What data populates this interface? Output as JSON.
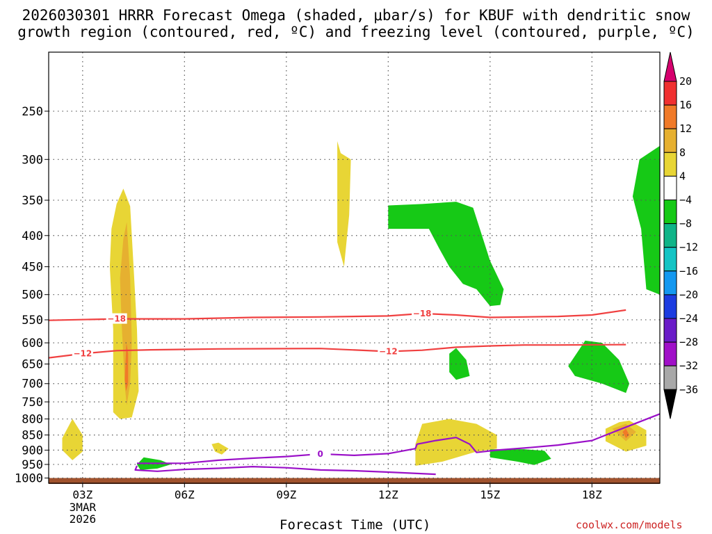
{
  "title": {
    "line1": "2026030301 HRRR Forecast Omega (shaded, μbar/s) for KBUF with dendritic snow",
    "line2": "growth region (contoured, red, ºC) and freezing level (contoured, purple, ºC)"
  },
  "credit": "coolwx.com/models",
  "chart_data": {
    "type": "heatmap",
    "title": "2026030301 HRRR Forecast Omega (shaded, μbar/s) for KBUF with dendritic snow growth region (contoured, red, ºC) and freezing level (contoured, purple, ºC)",
    "xlabel": "Forecast Time (UTC)",
    "ylabel": "",
    "x_unit": "forecast hour",
    "y_unit": "hPa",
    "xlim": [
      1,
      19
    ],
    "ylim": [
      1020,
      200
    ],
    "y_scale": "log",
    "x_ticks": [
      {
        "x": 2,
        "label": "03Z",
        "sub": [
          "3MAR",
          "2026"
        ]
      },
      {
        "x": 5,
        "label": "06Z"
      },
      {
        "x": 8,
        "label": "09Z"
      },
      {
        "x": 11,
        "label": "12Z"
      },
      {
        "x": 14,
        "label": "15Z"
      },
      {
        "x": 17,
        "label": "18Z"
      }
    ],
    "y_ticks": [
      250,
      300,
      350,
      400,
      450,
      500,
      550,
      600,
      650,
      700,
      750,
      800,
      850,
      900,
      950,
      1000
    ],
    "grid": true,
    "colorbar": {
      "placement": "right",
      "labels": [
        "20",
        "16",
        "12",
        "8",
        "4",
        "−4",
        "−8",
        "−12",
        "−16",
        "−20",
        "−24",
        "−28",
        "−32",
        "−36"
      ],
      "colors": [
        "#d6006e",
        "#f03030",
        "#f07a28",
        "#e6b030",
        "#e8d535",
        "#ffffff",
        "#16c916",
        "#10b488",
        "#14c4c4",
        "#1498f0",
        "#1c3ce0",
        "#6a1cc8",
        "#a010c8",
        "#a8a8a8",
        "#000000"
      ]
    },
    "contours": {
      "dendritic": {
        "color": "#f04040",
        "levels": [
          {
            "value": -18,
            "label": "−18",
            "points": [
              [
                1,
                551
              ],
              [
                3,
                548
              ],
              [
                5,
                548
              ],
              [
                7,
                545
              ],
              [
                9,
                544
              ],
              [
                11,
                542
              ],
              [
                12,
                537
              ],
              [
                13,
                540
              ],
              [
                14,
                545
              ],
              [
                16,
                543
              ],
              [
                17,
                540
              ],
              [
                18,
                530
              ]
            ]
          },
          {
            "value": -12,
            "label": "−12",
            "points": [
              [
                1,
                635
              ],
              [
                2,
                625
              ],
              [
                3,
                618
              ],
              [
                4,
                616
              ],
              [
                6,
                614
              ],
              [
                9,
                613
              ],
              [
                11,
                620
              ],
              [
                12,
                617
              ],
              [
                13,
                610
              ],
              [
                14,
                607
              ],
              [
                15,
                605
              ],
              [
                16,
                605
              ],
              [
                18,
                604
              ]
            ]
          }
        ]
      },
      "freezing": {
        "color": "#9a10c8",
        "levels": [
          {
            "value": 0,
            "label": "0",
            "points": [
              [
                3.6,
                946
              ],
              [
                5,
                946
              ],
              [
                6,
                935
              ],
              [
                7,
                928
              ],
              [
                8,
                922
              ],
              [
                9,
                913
              ],
              [
                10,
                918
              ],
              [
                11,
                912
              ],
              [
                11.8,
                895
              ],
              [
                11.85,
                880
              ],
              [
                12.4,
                868
              ],
              [
                13.0,
                858
              ],
              [
                13.4,
                880
              ],
              [
                13.6,
                908
              ],
              [
                14.2,
                900
              ],
              [
                15,
                893
              ],
              [
                16,
                883
              ],
              [
                17,
                868
              ],
              [
                18,
                825
              ],
              [
                19,
                785
              ]
            ]
          },
          {
            "value": 0,
            "label": "",
            "points": [
              [
                3.6,
                955
              ],
              [
                3.55,
                970
              ],
              [
                4.2,
                975
              ],
              [
                5,
                968
              ],
              [
                6,
                964
              ],
              [
                7,
                958
              ],
              [
                8,
                962
              ],
              [
                9,
                970
              ],
              [
                10,
                973
              ],
              [
                11,
                978
              ],
              [
                12.4,
                986
              ]
            ]
          }
        ]
      }
    },
    "shaded_regions": [
      {
        "level": "4 to 8",
        "color": "#e8d535",
        "points": [
          [
            2.9,
            780
          ],
          [
            2.9,
            570
          ],
          [
            2.8,
            450
          ],
          [
            2.85,
            390
          ],
          [
            3.0,
            355
          ],
          [
            3.2,
            335
          ],
          [
            3.4,
            358
          ],
          [
            3.5,
            450
          ],
          [
            3.6,
            570
          ],
          [
            3.65,
            720
          ],
          [
            3.45,
            795
          ],
          [
            3.1,
            800
          ]
        ]
      },
      {
        "level": "8 to 12",
        "color": "#e6b030",
        "points": [
          [
            3.25,
            715
          ],
          [
            3.15,
            560
          ],
          [
            3.1,
            470
          ],
          [
            3.2,
            405
          ],
          [
            3.3,
            380
          ],
          [
            3.4,
            470
          ],
          [
            3.45,
            600
          ],
          [
            3.4,
            700
          ],
          [
            3.3,
            760
          ]
        ]
      },
      {
        "level": "12 to 16",
        "color": "#f07a28",
        "points": [
          [
            3.26,
            650
          ],
          [
            3.29,
            600
          ],
          [
            3.34,
            625
          ],
          [
            3.34,
            700
          ],
          [
            3.28,
            720
          ],
          [
            3.24,
            690
          ]
        ]
      },
      {
        "level": "4 to 8",
        "color": "#e8d535",
        "points": [
          [
            9.5,
            280
          ],
          [
            9.6,
            293
          ],
          [
            9.9,
            300
          ],
          [
            9.85,
            370
          ],
          [
            9.7,
            450
          ],
          [
            9.5,
            410
          ],
          [
            9.5,
            340
          ]
        ]
      },
      {
        "level": "4 to 8",
        "color": "#e8d535",
        "points": [
          [
            1.4,
            860
          ],
          [
            1.7,
            800
          ],
          [
            2.0,
            850
          ],
          [
            2.0,
            905
          ],
          [
            1.7,
            935
          ],
          [
            1.4,
            900
          ]
        ]
      },
      {
        "level": "4 to 8",
        "color": "#e8d535",
        "points": [
          [
            5.8,
            880
          ],
          [
            6.0,
            875
          ],
          [
            6.3,
            895
          ],
          [
            6.1,
            915
          ],
          [
            5.9,
            905
          ]
        ]
      },
      {
        "level": "4 to 8",
        "color": "#e8d535",
        "points": [
          [
            11.8,
            880
          ],
          [
            12.0,
            815
          ],
          [
            12.8,
            800
          ],
          [
            13.6,
            815
          ],
          [
            14.2,
            850
          ],
          [
            14.2,
            895
          ],
          [
            13.6,
            905
          ],
          [
            12.6,
            940
          ],
          [
            11.8,
            955
          ]
        ]
      },
      {
        "level": "4 to 8",
        "color": "#e8d535",
        "points": [
          [
            17.4,
            830
          ],
          [
            17.8,
            810
          ],
          [
            18.1,
            805
          ],
          [
            18.6,
            835
          ],
          [
            18.6,
            885
          ],
          [
            18.0,
            905
          ],
          [
            17.4,
            870
          ]
        ]
      },
      {
        "level": "8 to 12",
        "color": "#e6b030",
        "points": [
          [
            17.6,
            830
          ],
          [
            18.0,
            815
          ],
          [
            18.3,
            840
          ],
          [
            18.0,
            870
          ]
        ]
      },
      {
        "level": "12 to 16",
        "color": "#f07a28",
        "points": [
          [
            17.9,
            840
          ],
          [
            18.0,
            830
          ],
          [
            18.1,
            850
          ],
          [
            18.0,
            860
          ]
        ]
      },
      {
        "level": "-8 to -4",
        "color": "#16c916",
        "points": [
          [
            11,
            357
          ],
          [
            12,
            355
          ],
          [
            13,
            352
          ],
          [
            13.5,
            360
          ],
          [
            14.0,
            440
          ],
          [
            14.4,
            490
          ],
          [
            14.3,
            520
          ],
          [
            14.0,
            522
          ],
          [
            13.6,
            490
          ],
          [
            13.2,
            480
          ],
          [
            12.8,
            450
          ],
          [
            12.5,
            420
          ],
          [
            12.2,
            390
          ],
          [
            11,
            390
          ]
        ]
      },
      {
        "level": "-8 to -4",
        "color": "#16c916",
        "points": [
          [
            12.8,
            625
          ],
          [
            13.0,
            612
          ],
          [
            13.3,
            640
          ],
          [
            13.4,
            680
          ],
          [
            13.0,
            690
          ],
          [
            12.8,
            670
          ]
        ]
      },
      {
        "level": "-8 to -4",
        "color": "#16c916",
        "points": [
          [
            16.3,
            655
          ],
          [
            16.8,
            595
          ],
          [
            17.3,
            600
          ],
          [
            17.8,
            640
          ],
          [
            18.1,
            700
          ],
          [
            18.0,
            725
          ],
          [
            17.3,
            700
          ],
          [
            16.5,
            680
          ]
        ]
      },
      {
        "level": "-8 to -4",
        "color": "#16c916",
        "points": [
          [
            18.2,
            345
          ],
          [
            18.4,
            300
          ],
          [
            19,
            285
          ],
          [
            19,
            500
          ],
          [
            18.6,
            490
          ],
          [
            18.45,
            390
          ]
        ]
      },
      {
        "level": "-8 to -4",
        "color": "#16c916",
        "points": [
          [
            14,
            897
          ],
          [
            15,
            897
          ],
          [
            15.6,
            902
          ],
          [
            15.8,
            930
          ],
          [
            15.3,
            952
          ],
          [
            14.8,
            940
          ],
          [
            14,
            925
          ]
        ]
      },
      {
        "level": "-8 to -4",
        "color": "#16c916",
        "points": [
          [
            3.6,
            950
          ],
          [
            3.8,
            925
          ],
          [
            4.3,
            935
          ],
          [
            4.6,
            950
          ],
          [
            4.2,
            965
          ],
          [
            3.7,
            970
          ]
        ]
      }
    ],
    "ground": {
      "color": "#a0522d",
      "from": 1000,
      "to": 1020
    }
  }
}
